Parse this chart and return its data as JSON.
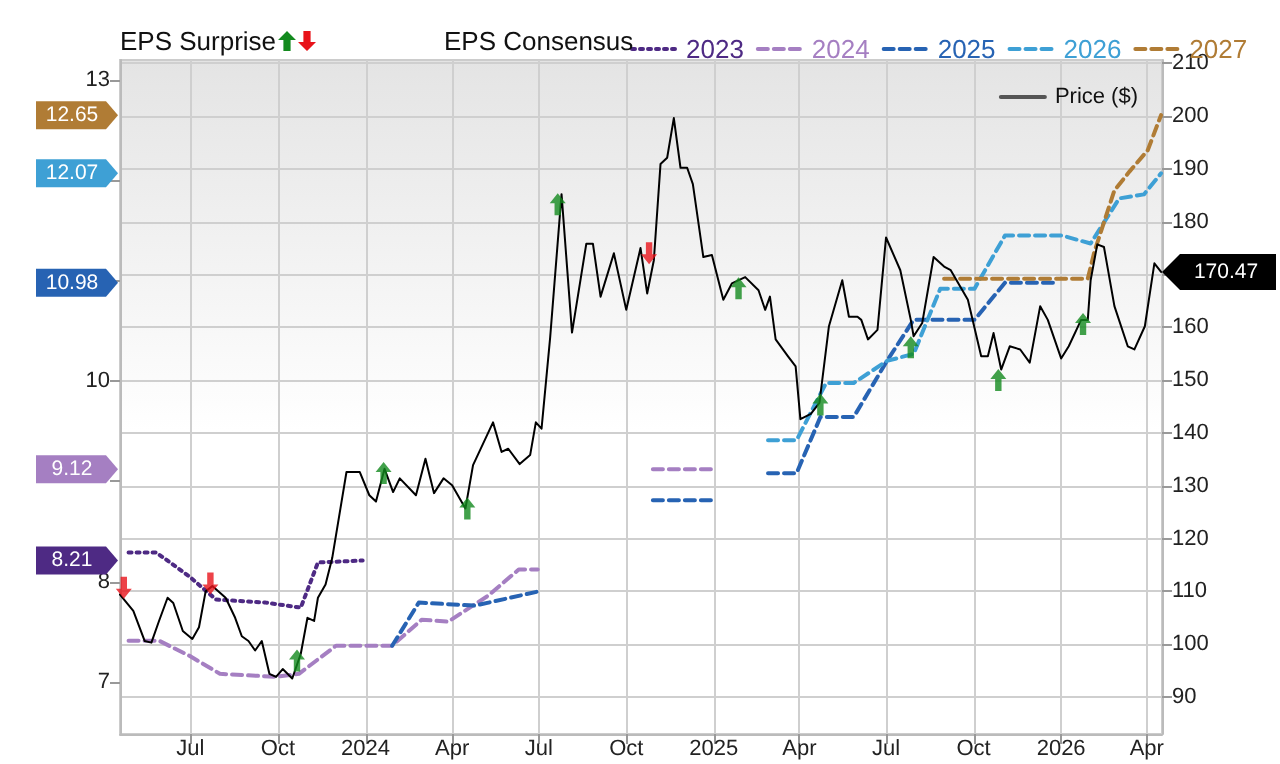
{
  "chart_data": {
    "type": "line",
    "annotations": [
      "EPS Surprise",
      "12.65",
      "12.07",
      "10.98",
      "9.12",
      "8.21"
    ],
    "legend_title": "EPS Consensus",
    "legend": "top right",
    "grid": true,
    "marker": "none",
    "xlim": [
      "2023-04-18",
      "2026-04-17"
    ],
    "xticks": [
      {
        "value": "2023-07-01",
        "label": "Jul"
      },
      {
        "value": "2023-10-01",
        "label": "Oct"
      },
      {
        "value": "2024-01-01",
        "label": "2024"
      },
      {
        "value": "2024-04-01",
        "label": "Apr"
      },
      {
        "value": "2024-07-01",
        "label": "Jul"
      },
      {
        "value": "2024-10-01",
        "label": "Oct"
      },
      {
        "value": "2025-01-01",
        "label": "2025"
      },
      {
        "value": "2025-04-01",
        "label": "Apr"
      },
      {
        "value": "2025-07-01",
        "label": "Jul"
      },
      {
        "value": "2025-10-01",
        "label": "Oct"
      },
      {
        "value": "2026-01-01",
        "label": "2026"
      },
      {
        "value": "2026-04-01",
        "label": "Apr"
      }
    ],
    "ylim": [
      6.48,
      13.2
    ],
    "yticks": [
      7,
      8,
      {
        "value": 9,
        "label": null
      },
      10,
      {
        "value": 11,
        "label": null
      },
      {
        "value": 12,
        "label": null
      },
      13
    ],
    "y2lim": [
      83,
      210.6
    ],
    "y2ticks": [
      90,
      100,
      110,
      120,
      130,
      140,
      150,
      160,
      {
        "value": 170,
        "label": null
      },
      180,
      190,
      200,
      210
    ],
    "series": [
      {
        "name": "2023",
        "color": "#4e2a84",
        "line_style": "dotted",
        "x": [
          "2023-04-27",
          "2023-05-26",
          "2023-06-30",
          "2023-07-28",
          "2023-09-18",
          "2023-10-25",
          "2023-11-12",
          "2023-12-29"
        ],
        "values": [
          8.29,
          8.29,
          8.05,
          7.82,
          7.79,
          7.74,
          8.19,
          8.21
        ]
      },
      {
        "name": "2024",
        "color": "#a57fc2",
        "line_style": "dashed",
        "x": [
          "2023-04-27",
          "2023-05-29",
          "2023-06-30",
          "2023-08-01",
          "2023-09-29",
          "2023-10-23",
          "2023-12-01",
          "2024-01-29",
          "2024-02-29",
          "2024-03-28",
          "2024-05-09",
          "2024-06-10",
          "2024-06-30",
          "2024-08-15",
          "2024-10-29",
          "2024-12-30"
        ],
        "values": [
          7.41,
          7.41,
          7.26,
          7.08,
          7.05,
          7.08,
          7.36,
          7.36,
          7.62,
          7.6,
          7.86,
          8.12,
          8.12,
          null,
          9.12,
          9.12
        ]
      },
      {
        "name": "2025",
        "color": "#2763b3",
        "line_style": "dashed",
        "x": [
          "2024-01-29",
          "2024-02-26",
          "2024-04-25",
          "2024-06-30",
          "2024-08-15",
          "2024-10-29",
          "2025-01-01",
          "2025-01-30",
          "2025-02-27",
          "2025-03-29",
          "2025-04-23",
          "2025-05-28",
          "2025-07-02",
          "2025-07-30",
          "2025-10-02",
          "2025-11-03",
          "2025-12-25"
        ],
        "values": [
          7.36,
          7.79,
          7.76,
          7.9,
          null,
          8.81,
          8.81,
          null,
          9.08,
          9.08,
          9.64,
          9.64,
          10.2,
          10.61,
          10.61,
          10.98,
          10.98
        ]
      },
      {
        "name": "2026",
        "color": "#3ea0d5",
        "line_style": "dashed",
        "x": [
          "2025-02-27",
          "2025-03-29",
          "2025-04-29",
          "2025-05-28",
          "2025-07-02",
          "2025-07-30",
          "2025-08-27",
          "2025-10-02",
          "2025-11-03",
          "2026-01-02",
          "2026-02-01",
          "2026-03-03",
          "2026-03-29",
          "2026-04-16"
        ],
        "values": [
          9.41,
          9.41,
          9.98,
          9.98,
          10.2,
          10.27,
          10.92,
          10.92,
          11.45,
          11.45,
          11.37,
          11.82,
          11.86,
          12.07
        ]
      },
      {
        "name": "2027",
        "color": "#b07c35",
        "line_style": "dashed",
        "x": [
          "2025-08-31",
          "2026-01-29",
          "2026-02-05",
          "2026-02-26",
          "2026-03-14",
          "2026-04-02",
          "2026-04-16"
        ],
        "values": [
          11.02,
          11.02,
          11.29,
          11.9,
          12.09,
          12.3,
          12.65
        ]
      },
      {
        "name": "Price ($)",
        "color": "#000000",
        "axis": "y2",
        "line_style": "solid",
        "x": [
          "2023-04-18",
          "2023-05-02",
          "2023-05-14",
          "2023-05-21",
          "2023-05-29",
          "2023-06-07",
          "2023-06-13",
          "2023-06-23",
          "2023-07-03",
          "2023-07-10",
          "2023-07-17",
          "2023-07-24",
          "2023-08-07",
          "2023-08-17",
          "2023-08-24",
          "2023-08-31",
          "2023-09-07",
          "2023-09-14",
          "2023-09-22",
          "2023-09-29",
          "2023-10-06",
          "2023-10-16",
          "2023-10-25",
          "2023-11-01",
          "2023-11-08",
          "2023-11-12",
          "2023-11-20",
          "2023-11-27",
          "2023-12-12",
          "2023-12-26",
          "2024-01-05",
          "2024-01-12",
          "2024-01-21",
          "2024-01-30",
          "2024-02-06",
          "2024-02-23",
          "2024-03-04",
          "2024-03-13",
          "2024-03-23",
          "2024-04-01",
          "2024-04-15",
          "2024-04-23",
          "2024-05-14",
          "2024-05-23",
          "2024-05-30",
          "2024-06-11",
          "2024-06-22",
          "2024-06-28",
          "2024-07-04",
          "2024-07-13",
          "2024-07-25",
          "2024-08-05",
          "2024-08-20",
          "2024-08-27",
          "2024-09-04",
          "2024-09-18",
          "2024-10-01",
          "2024-10-16",
          "2024-10-23",
          "2024-10-30",
          "2024-11-06",
          "2024-11-13",
          "2024-11-20",
          "2024-11-27",
          "2024-12-04",
          "2024-12-10",
          "2024-12-21",
          "2024-12-30",
          "2025-01-11",
          "2025-01-20",
          "2025-02-03",
          "2025-02-17",
          "2025-02-24",
          "2025-03-01",
          "2025-03-07",
          "2025-03-20",
          "2025-03-28",
          "2025-04-02",
          "2025-04-13",
          "2025-04-22",
          "2025-05-02",
          "2025-05-16",
          "2025-05-23",
          "2025-06-01",
          "2025-06-05",
          "2025-06-12",
          "2025-06-22",
          "2025-07-01",
          "2025-07-16",
          "2025-07-27",
          "2025-07-30",
          "2025-08-08",
          "2025-08-20",
          "2025-08-31",
          "2025-09-07",
          "2025-09-25",
          "2025-10-09",
          "2025-10-16",
          "2025-10-22",
          "2025-10-30",
          "2025-11-08",
          "2025-11-19",
          "2025-11-29",
          "2025-12-10",
          "2025-12-18",
          "2026-01-01",
          "2026-01-09",
          "2026-01-22",
          "2026-01-29",
          "2026-02-01",
          "2026-02-08",
          "2026-02-15",
          "2026-02-26",
          "2026-03-12",
          "2026-03-19",
          "2026-03-30",
          "2026-04-09",
          "2026-04-16"
        ],
        "values": [
          109.4,
          106.3,
          100.6,
          100.3,
          104.4,
          108.8,
          107.8,
          102.5,
          101,
          103.2,
          110,
          111,
          108.8,
          105,
          101.5,
          100.6,
          98.8,
          100.6,
          94.4,
          93.8,
          95.3,
          93.5,
          98.2,
          105,
          104.4,
          108.8,
          111.3,
          116.3,
          132.6,
          132.6,
          128.2,
          127,
          133.2,
          128.8,
          131.4,
          128.2,
          135.1,
          128.6,
          131.4,
          130.1,
          125.7,
          133.9,
          142,
          136.4,
          137,
          134.1,
          135.8,
          142,
          140.8,
          158,
          185.2,
          159,
          175.8,
          175.8,
          165.8,
          174,
          163.3,
          175,
          166.4,
          172.7,
          190.9,
          192.1,
          199.6,
          190.2,
          190.2,
          187.1,
          173.3,
          173.7,
          165.2,
          168.3,
          169.5,
          167,
          163.3,
          165.8,
          157.7,
          154.5,
          152.6,
          142.6,
          143.6,
          145.7,
          160.2,
          168.9,
          162,
          162,
          161.4,
          157.7,
          159.5,
          177,
          170.8,
          161.4,
          158.3,
          160.8,
          173.3,
          171.5,
          170.8,
          165.2,
          154.5,
          154.5,
          158.9,
          152,
          156.4,
          155.8,
          153.3,
          164,
          161.4,
          154.1,
          156.4,
          161.4,
          161.4,
          168.9,
          175.7,
          175.2,
          164,
          156.4,
          155.8,
          160.2,
          172.1,
          170.47
        ],
        "value_labels": [
          null,
          null,
          null,
          null,
          null,
          null,
          null,
          null,
          null,
          null,
          null,
          null,
          null,
          null,
          null,
          null,
          null,
          null,
          null,
          null,
          null,
          null,
          null,
          null,
          null,
          null,
          null,
          null,
          null,
          null,
          null,
          null,
          null,
          null,
          null,
          null,
          null,
          null,
          null,
          null,
          null,
          null,
          null,
          null,
          null,
          null,
          null,
          null,
          null,
          null,
          null,
          null,
          null,
          null,
          null,
          null,
          null,
          null,
          null,
          null,
          null,
          null,
          null,
          null,
          null,
          null,
          null,
          null,
          null,
          null,
          null,
          null,
          null,
          null,
          null,
          null,
          null,
          null,
          null,
          null,
          null,
          null,
          null,
          null,
          null,
          null,
          null,
          null,
          null,
          null,
          null,
          null,
          null,
          null,
          null,
          null,
          null,
          null,
          null,
          null,
          null,
          null,
          null,
          null,
          null,
          null,
          null,
          null,
          null,
          null,
          null,
          null,
          null,
          null,
          null,
          null,
          null,
          "170.47"
        ]
      },
      {
        "type": "scatter",
        "color": "#138a1e",
        "axis": "y2",
        "marker": "triangle",
        "x": [
          "2023-10-21",
          "2024-01-20",
          "2024-04-17",
          "2024-07-21",
          "2025-01-27",
          "2025-04-23",
          "2025-07-27",
          "2025-10-27",
          "2026-01-24"
        ],
        "values": [
          96.9,
          132.4,
          125.7,
          183.3,
          167.4,
          145.4,
          156.2,
          150,
          160.6
        ]
      },
      {
        "type": "scatter",
        "color": "#e8131a",
        "axis": "y2",
        "marker": "triangle",
        "x": [
          "2023-04-22",
          "2023-07-22",
          "2024-10-25"
        ],
        "values": [
          110.7,
          111.5,
          174
        ]
      }
    ]
  }
}
